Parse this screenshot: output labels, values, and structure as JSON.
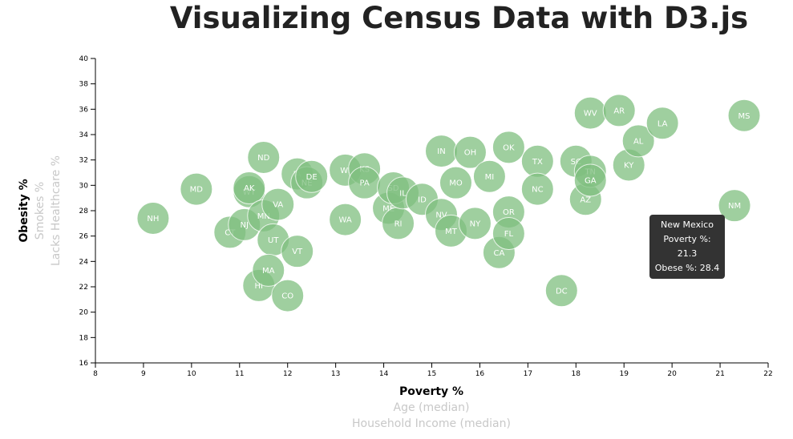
{
  "page": {
    "title": "Visualizing Census Data with D3.js"
  },
  "chart_data": {
    "type": "scatter",
    "title": "Visualizing Census Data with D3.js",
    "xlabel": "Poverty %",
    "ylabel": "Obesity %",
    "x_axis_options": [
      "Poverty %",
      "Age (median)",
      "Household Income (median)"
    ],
    "y_axis_options": [
      "Obesity %",
      "Smokes %",
      "Lacks Healthcare %"
    ],
    "xlim": [
      8,
      22
    ],
    "ylim": [
      16,
      40
    ],
    "x_ticks": [
      8,
      9,
      10,
      11,
      12,
      13,
      14,
      15,
      16,
      17,
      18,
      19,
      20,
      21,
      22
    ],
    "y_ticks": [
      16,
      18,
      20,
      22,
      24,
      26,
      28,
      30,
      32,
      34,
      36,
      38,
      40
    ],
    "grid": false,
    "points": [
      {
        "abbr": "NH",
        "x": 9.2,
        "y": 27.4
      },
      {
        "abbr": "MD",
        "x": 10.1,
        "y": 29.7
      },
      {
        "abbr": "CT",
        "x": 10.8,
        "y": 26.3
      },
      {
        "abbr": "NJ",
        "x": 11.1,
        "y": 26.9
      },
      {
        "abbr": "WY",
        "x": 11.2,
        "y": 29.5
      },
      {
        "abbr": "AK",
        "x": 11.2,
        "y": 29.8
      },
      {
        "abbr": "MN",
        "x": 11.5,
        "y": 27.6
      },
      {
        "abbr": "ND",
        "x": 11.5,
        "y": 32.2
      },
      {
        "abbr": "HI",
        "x": 11.4,
        "y": 22.1
      },
      {
        "abbr": "UT",
        "x": 11.7,
        "y": 25.7
      },
      {
        "abbr": "MA",
        "x": 11.6,
        "y": 23.3
      },
      {
        "abbr": "VA",
        "x": 11.8,
        "y": 28.5
      },
      {
        "abbr": "CO",
        "x": 12.0,
        "y": 21.3
      },
      {
        "abbr": "IA",
        "x": 12.2,
        "y": 30.9
      },
      {
        "abbr": "VT",
        "x": 12.2,
        "y": 24.8
      },
      {
        "abbr": "NE",
        "x": 12.4,
        "y": 30.2
      },
      {
        "abbr": "DE",
        "x": 12.5,
        "y": 30.7
      },
      {
        "abbr": "WI",
        "x": 13.2,
        "y": 31.2
      },
      {
        "abbr": "WA",
        "x": 13.2,
        "y": 27.3
      },
      {
        "abbr": "KS",
        "x": 13.6,
        "y": 31.3
      },
      {
        "abbr": "PA",
        "x": 13.6,
        "y": 30.2
      },
      {
        "abbr": "ME",
        "x": 14.1,
        "y": 28.2
      },
      {
        "abbr": "SD",
        "x": 14.2,
        "y": 29.8
      },
      {
        "abbr": "RI",
        "x": 14.3,
        "y": 27.0
      },
      {
        "abbr": "IL",
        "x": 14.4,
        "y": 29.4
      },
      {
        "abbr": "ID",
        "x": 14.8,
        "y": 28.9
      },
      {
        "abbr": "IN",
        "x": 15.2,
        "y": 32.7
      },
      {
        "abbr": "NV",
        "x": 15.2,
        "y": 27.7
      },
      {
        "abbr": "MT",
        "x": 15.4,
        "y": 26.4
      },
      {
        "abbr": "MO",
        "x": 15.5,
        "y": 30.2
      },
      {
        "abbr": "OH",
        "x": 15.8,
        "y": 32.6
      },
      {
        "abbr": "NY",
        "x": 15.9,
        "y": 27.0
      },
      {
        "abbr": "MI",
        "x": 16.2,
        "y": 30.7
      },
      {
        "abbr": "CA",
        "x": 16.4,
        "y": 24.7
      },
      {
        "abbr": "OR",
        "x": 16.6,
        "y": 27.9
      },
      {
        "abbr": "FL",
        "x": 16.6,
        "y": 26.2
      },
      {
        "abbr": "OK",
        "x": 16.6,
        "y": 33.0
      },
      {
        "abbr": "TX",
        "x": 17.2,
        "y": 31.9
      },
      {
        "abbr": "NC",
        "x": 17.2,
        "y": 29.7
      },
      {
        "abbr": "DC",
        "x": 17.7,
        "y": 21.7
      },
      {
        "abbr": "SC",
        "x": 18.0,
        "y": 31.9
      },
      {
        "abbr": "AZ",
        "x": 18.2,
        "y": 28.9
      },
      {
        "abbr": "WV",
        "x": 18.3,
        "y": 35.7
      },
      {
        "abbr": "TN",
        "x": 18.3,
        "y": 31.1
      },
      {
        "abbr": "GA",
        "x": 18.3,
        "y": 30.4
      },
      {
        "abbr": "AR",
        "x": 18.9,
        "y": 35.9
      },
      {
        "abbr": "KY",
        "x": 19.1,
        "y": 31.6
      },
      {
        "abbr": "AL",
        "x": 19.3,
        "y": 33.5
      },
      {
        "abbr": "LA",
        "x": 19.8,
        "y": 34.9
      },
      {
        "abbr": "NM",
        "x": 21.3,
        "y": 28.4
      },
      {
        "abbr": "MS",
        "x": 21.5,
        "y": 35.5
      }
    ],
    "tooltip": {
      "state": "New Mexico",
      "line1": "Poverty %: 21.3",
      "line2": "Obese %: 28.4"
    },
    "colors": {
      "marker": "#7fbf7f",
      "active_label": "#000000",
      "inactive_label": "#c8c8c8",
      "tooltip_bg": "#333333"
    }
  }
}
